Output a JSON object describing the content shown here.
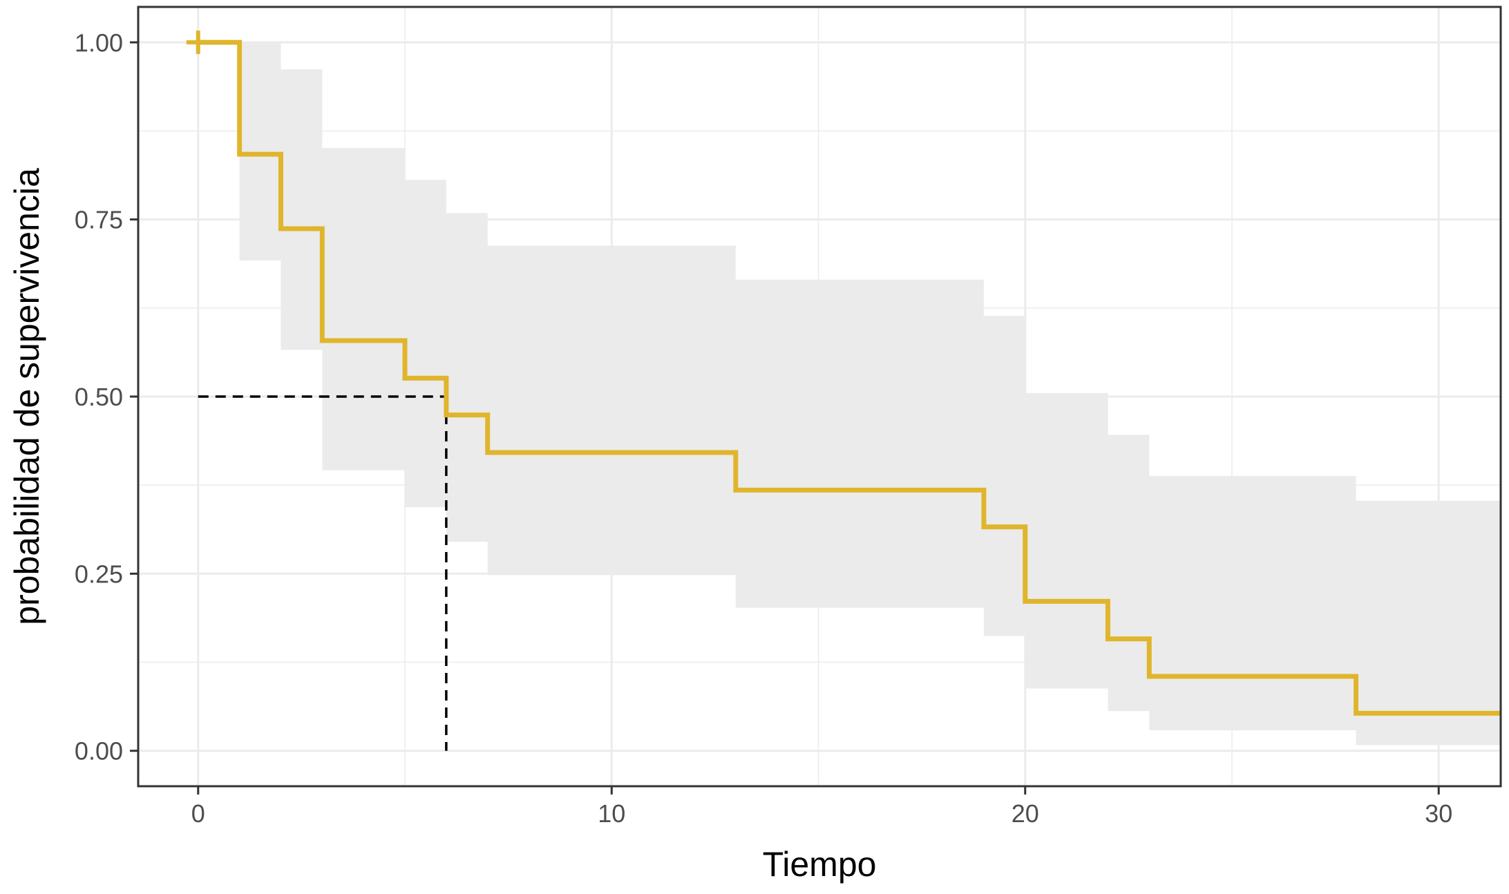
{
  "chart_data": {
    "type": "line",
    "subtype": "kaplan-meier-step",
    "title": "",
    "xlabel": "Tiempo",
    "ylabel": "probabilidad de supervivencia",
    "xlim": [
      -1.45,
      31.5
    ],
    "ylim": [
      -0.05,
      1.05
    ],
    "x_ticks": [
      0,
      10,
      20,
      30
    ],
    "x_tick_labels": [
      "0",
      "10",
      "20",
      "30"
    ],
    "y_ticks": [
      0,
      0.25,
      0.5,
      0.75,
      1
    ],
    "y_tick_labels": [
      "0.00",
      "0.25",
      "0.50",
      "0.75",
      "1.00"
    ],
    "grid": true,
    "legend": "none",
    "colors": {
      "curve": "#E0B52D",
      "ci_band": "#EBEBEB",
      "grid": "#EBEBEB",
      "median_line": "#000000"
    },
    "series": [
      {
        "time": [
          0,
          1,
          2,
          3,
          5,
          6,
          7,
          13,
          19,
          20,
          22,
          23,
          28,
          31.5
        ],
        "surv": [
          1.0,
          0.842,
          0.737,
          0.579,
          0.526,
          0.474,
          0.421,
          0.368,
          0.316,
          0.211,
          0.158,
          0.105,
          0.053,
          0.053
        ],
        "lower": [
          1.0,
          0.692,
          0.566,
          0.396,
          0.344,
          0.295,
          0.248,
          0.202,
          0.162,
          0.088,
          0.056,
          0.029,
          0.008,
          0.008
        ],
        "upper": [
          1.0,
          1.0,
          0.962,
          0.851,
          0.806,
          0.759,
          0.713,
          0.665,
          0.614,
          0.505,
          0.446,
          0.388,
          0.353,
          0.353
        ]
      }
    ],
    "censored": [
      {
        "time": 0,
        "surv": 1.0
      }
    ],
    "median": {
      "time": 6,
      "surv": 0.5
    }
  }
}
